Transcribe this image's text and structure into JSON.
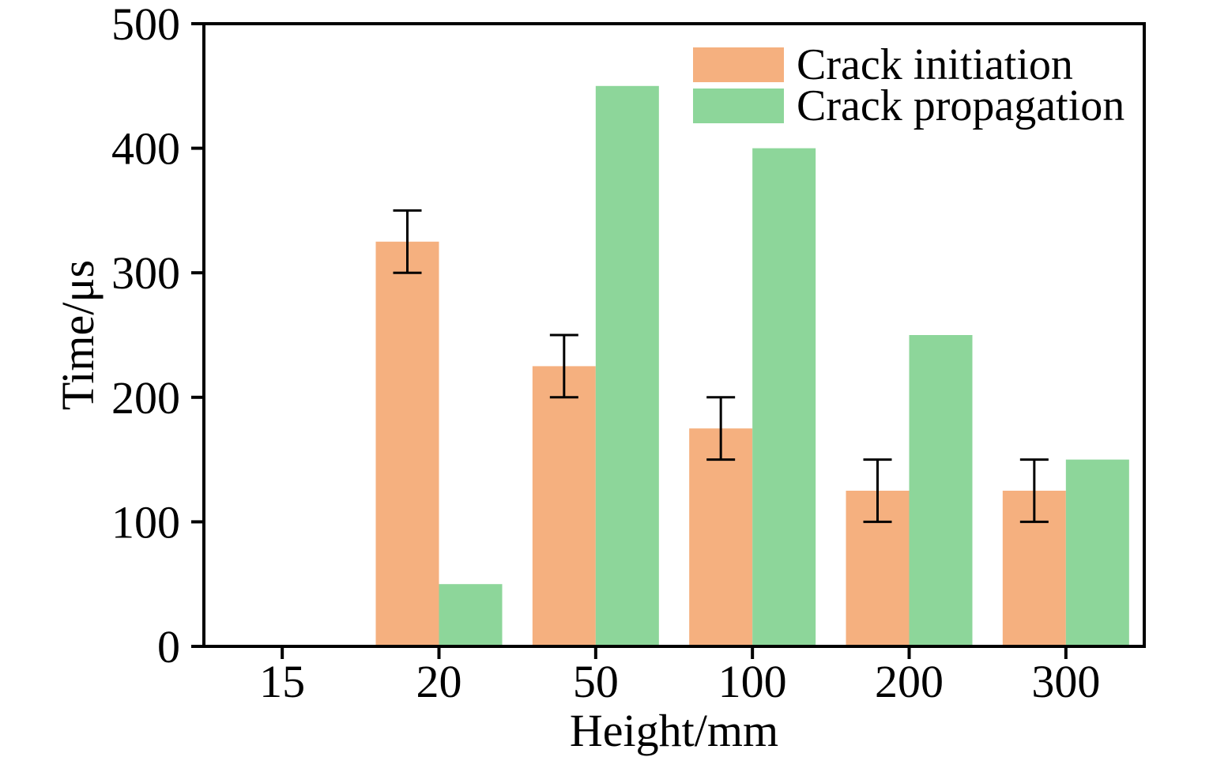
{
  "chart_data": {
    "type": "bar",
    "title": "",
    "xlabel": "Height/mm",
    "ylabel": "Time/μs",
    "categories": [
      "15",
      "20",
      "50",
      "100",
      "200",
      "300"
    ],
    "series": [
      {
        "name": "Crack initiation",
        "color": "#F5B07F",
        "values": [
          null,
          325,
          225,
          175,
          125,
          125
        ],
        "errors": [
          null,
          25,
          25,
          25,
          25,
          25
        ]
      },
      {
        "name": "Crack propagation",
        "color": "#8DD69A",
        "values": [
          null,
          50,
          450,
          400,
          250,
          150
        ],
        "errors": null
      }
    ],
    "ylim": [
      0,
      500
    ],
    "yticks": [
      0,
      100,
      200,
      300,
      400,
      500
    ],
    "grid": false,
    "legend_position": "top-right",
    "axis_color": "#000000",
    "background": "#FFFFFF"
  }
}
